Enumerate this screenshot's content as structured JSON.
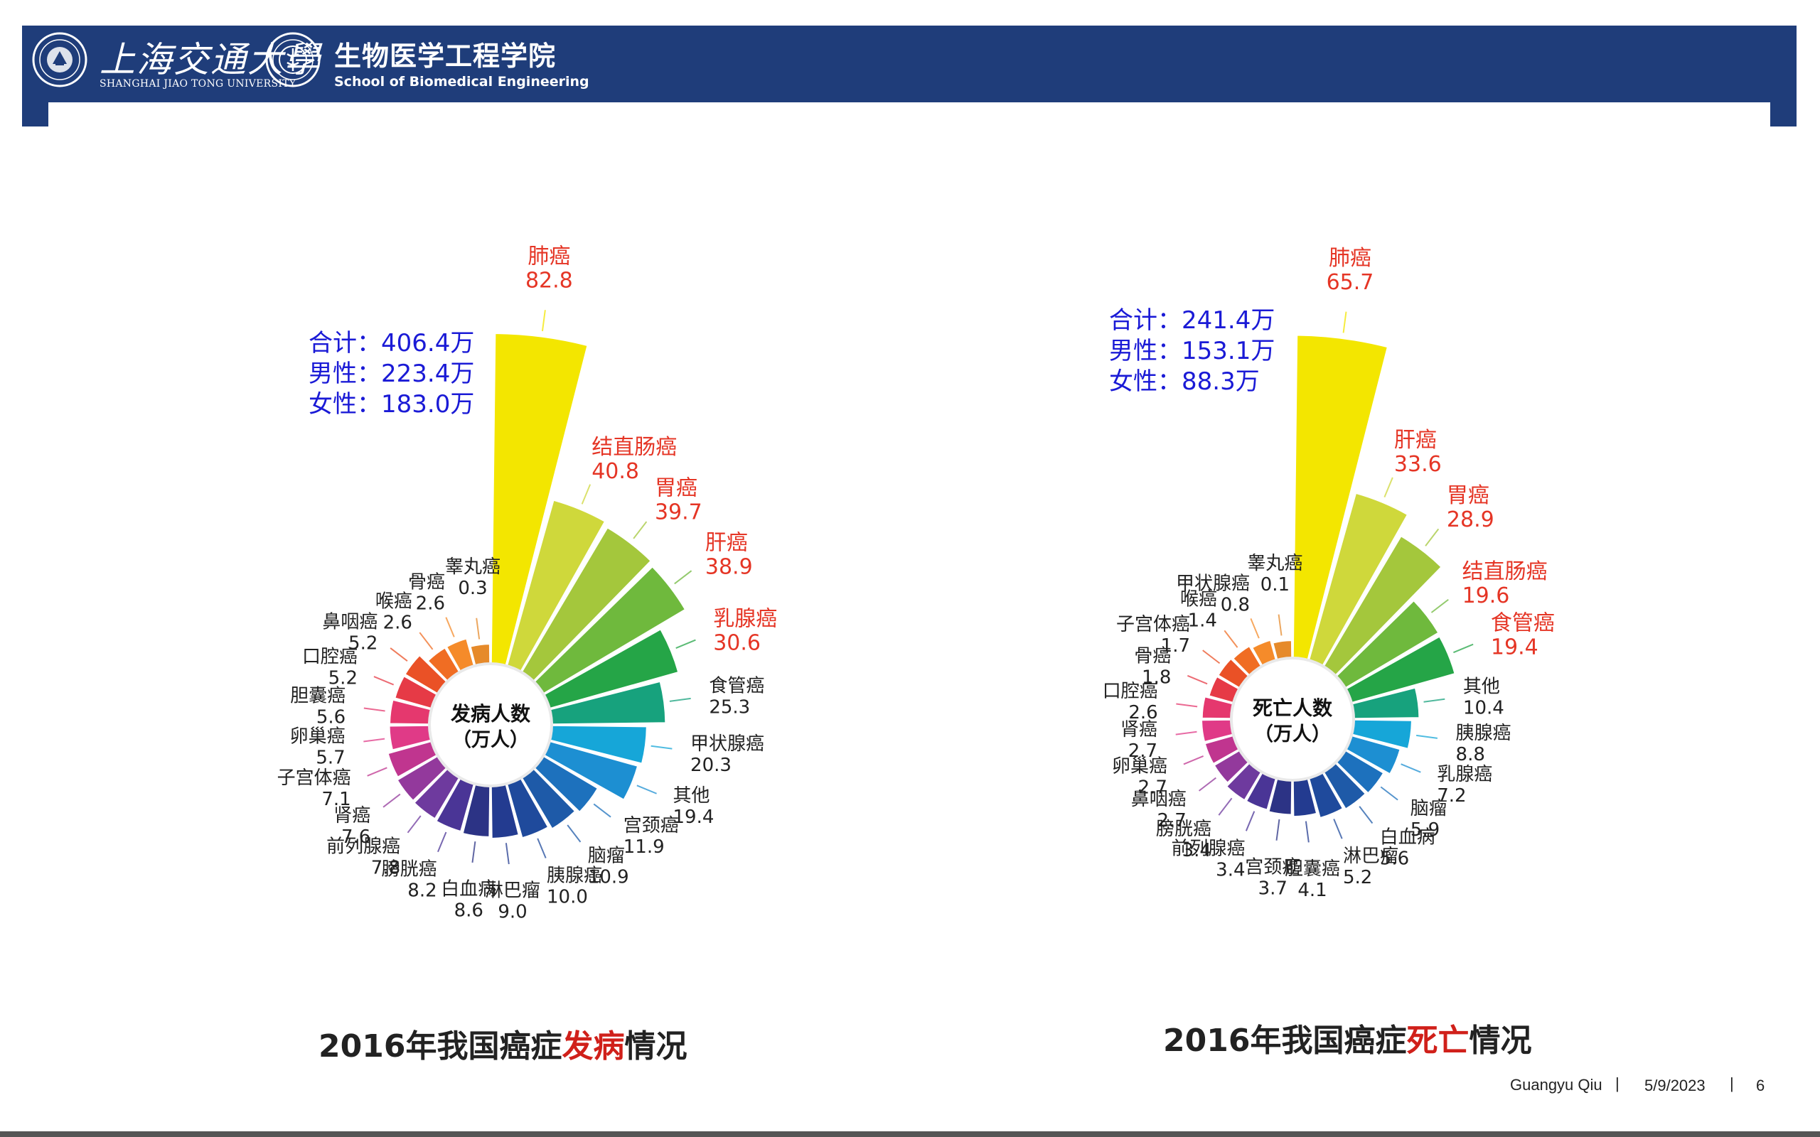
{
  "header": {
    "university_cn": "上海交通大學",
    "university_en": "SHANGHAI JIAO TONG UNIVERSITY",
    "school_cn": "生物医学工程学院",
    "school_en": "School of Biomedical Engineering",
    "bg_color": "#1f3d7a"
  },
  "footer": {
    "author": "Guangyu Qiu",
    "date": "5/9/2023",
    "page": "6",
    "separator": "|"
  },
  "chart_data": [
    {
      "type": "bar",
      "layout": "radial",
      "title_prefix": "2016年我国癌症",
      "title_highlight": "发病",
      "title_suffix": "情况",
      "center_label_line1": "发病人数",
      "center_label_line2": "（万人）",
      "summary": [
        "合计：406.4万",
        "男性：223.4万",
        "女性：183.0万"
      ],
      "highlight_color": "#e53525",
      "categories": [
        "肺癌",
        "结直肠癌",
        "胃癌",
        "肝癌",
        "乳腺癌",
        "食管癌",
        "甲状腺癌",
        "其他",
        "宫颈癌",
        "脑瘤",
        "胰腺癌",
        "淋巴瘤",
        "白血病",
        "膀胱癌",
        "前列腺癌",
        "肾癌",
        "子宫体癌",
        "卵巢癌",
        "胆囊癌",
        "口腔癌",
        "鼻咽癌",
        "喉癌",
        "骨癌",
        "睾丸癌"
      ],
      "values": [
        82.8,
        40.8,
        39.7,
        38.9,
        30.6,
        25.3,
        20.3,
        19.4,
        11.9,
        10.9,
        10.0,
        9.0,
        8.6,
        8.2,
        7.8,
        7.6,
        7.1,
        5.7,
        5.6,
        5.2,
        5.2,
        2.6,
        2.6,
        0.3
      ],
      "value_labels": [
        "82.8",
        "40.8",
        "39.7",
        "38.9",
        "30.6",
        "25.3",
        "20.3",
        "19.4",
        "11.9",
        "10.9",
        "10.0",
        "9.0",
        "8.6",
        "8.2",
        "7.8",
        "7.6",
        "7.1",
        "5.7",
        "5.6",
        "5.2",
        "5.2",
        "2.6",
        "2.6",
        "0.3"
      ],
      "highlighted": [
        true,
        true,
        true,
        true,
        true,
        false,
        false,
        false,
        false,
        false,
        false,
        false,
        false,
        false,
        false,
        false,
        false,
        false,
        false,
        false,
        false,
        false,
        false,
        false
      ]
    },
    {
      "type": "bar",
      "layout": "radial",
      "title_prefix": "2016年我国癌症",
      "title_highlight": "死亡",
      "title_suffix": "情况",
      "center_label_line1": "死亡人数",
      "center_label_line2": "（万人）",
      "summary": [
        "合计：241.4万",
        "男性：153.1万",
        "女性：88.3万"
      ],
      "highlight_color": "#e53525",
      "categories": [
        "肺癌",
        "肝癌",
        "胃癌",
        "结直肠癌",
        "食管癌",
        "其他",
        "胰腺癌",
        "乳腺癌",
        "脑瘤",
        "白血病",
        "淋巴瘤",
        "胆囊癌",
        "宫颈癌",
        "前列腺癌",
        "膀胱癌",
        "鼻咽癌",
        "卵巢癌",
        "肾癌",
        "口腔癌",
        "骨癌",
        "子宫体癌",
        "喉癌",
        "甲状腺癌",
        "睾丸癌"
      ],
      "values": [
        65.7,
        33.6,
        28.9,
        19.6,
        19.4,
        10.4,
        8.8,
        7.2,
        5.9,
        5.6,
        5.2,
        4.1,
        3.7,
        3.4,
        3.4,
        2.7,
        2.7,
        2.7,
        2.6,
        1.8,
        1.7,
        1.4,
        0.8,
        0.1
      ],
      "value_labels": [
        "65.7",
        "33.6",
        "28.9",
        "19.6",
        "19.4",
        "10.4",
        "8.8",
        "7.2",
        "5.9",
        "5.6",
        "5.2",
        "4.1",
        "3.7",
        "3.4",
        "3.4",
        "2.7",
        "2.7",
        "2.7",
        "2.6",
        "1.8",
        "1.7",
        "1.4",
        "0.8",
        "0.1"
      ],
      "highlighted": [
        true,
        true,
        true,
        true,
        true,
        false,
        false,
        false,
        false,
        false,
        false,
        false,
        false,
        false,
        false,
        false,
        false,
        false,
        false,
        false,
        false,
        false,
        false,
        false
      ]
    }
  ]
}
